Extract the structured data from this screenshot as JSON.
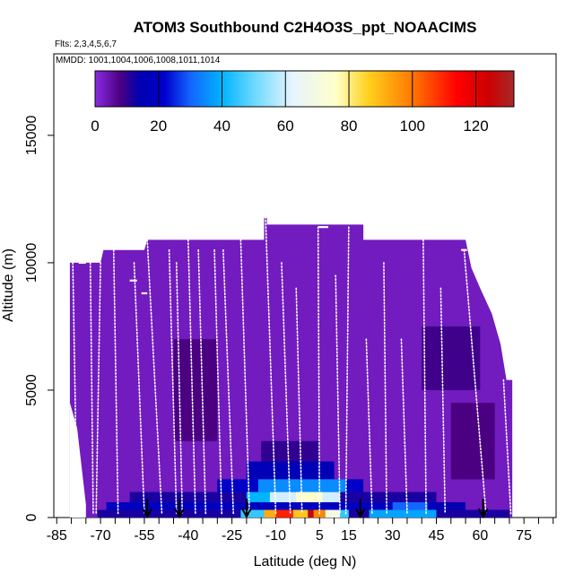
{
  "chart_data": {
    "type": "heatmap",
    "title": "ATOM3 Southbound C2H4O3S_ppt_NOAACIMS",
    "flights_label": "Flts: 2,3,4,5,6,7",
    "dates_label": "MMDD: 1001,1004,1006,1008,1011,1014",
    "xlabel": "Latitude (deg N)",
    "ylabel": "Altitude (m)",
    "xlim": [
      -86,
      86
    ],
    "ylim": [
      0,
      18200
    ],
    "x_tick_labels": [
      "-85",
      "-70",
      "-55",
      "-40",
      "-25",
      "-10",
      "5",
      "15",
      "30",
      "45",
      "60",
      "75"
    ],
    "x_ticks": [
      -85,
      -80,
      -75,
      -70,
      -65,
      -60,
      -55,
      -50,
      -45,
      -40,
      -35,
      -30,
      -25,
      -20,
      -15,
      -10,
      -5,
      0,
      5,
      10,
      15,
      20,
      25,
      30,
      35,
      40,
      45,
      50,
      55,
      60,
      65,
      70,
      75,
      80,
      85
    ],
    "y_tick_labels": [
      "0",
      "5000",
      "10000",
      "15000"
    ],
    "y_ticks": [
      0,
      5000,
      10000,
      15000
    ],
    "colorbar": {
      "min": 0,
      "max": 132,
      "tick_labels": [
        "0",
        "20",
        "40",
        "60",
        "80",
        "100",
        "120"
      ],
      "ticks": [
        0,
        20,
        40,
        60,
        80,
        100,
        120
      ],
      "stops": [
        {
          "v": 0,
          "c": "#8a2be2"
        },
        {
          "v": 8,
          "c": "#4b0082"
        },
        {
          "v": 14,
          "c": "#0000b0"
        },
        {
          "v": 22,
          "c": "#0000cd"
        },
        {
          "v": 30,
          "c": "#1464ff"
        },
        {
          "v": 40,
          "c": "#00b4ff"
        },
        {
          "v": 50,
          "c": "#6ad8ff"
        },
        {
          "v": 62,
          "c": "#e6f4ff"
        },
        {
          "v": 76,
          "c": "#ffffc8"
        },
        {
          "v": 86,
          "c": "#ffd21e"
        },
        {
          "v": 100,
          "c": "#ff7800"
        },
        {
          "v": 114,
          "c": "#ff0000"
        },
        {
          "v": 124,
          "c": "#cd0000"
        },
        {
          "v": 132,
          "c": "#a52a2a"
        }
      ]
    },
    "background_value": 3,
    "envelope": [
      {
        "lat": -80.5,
        "top": 10000
      },
      {
        "lat": -70,
        "top": 10000
      },
      {
        "lat": -69,
        "top": 10500
      },
      {
        "lat": -55,
        "top": 10500
      },
      {
        "lat": -54,
        "top": 10900
      },
      {
        "lat": -14,
        "top": 10900
      },
      {
        "lat": -14,
        "top": 11800
      },
      {
        "lat": -13,
        "top": 11800
      },
      {
        "lat": -13,
        "top": 11500
      },
      {
        "lat": 20,
        "top": 11500
      },
      {
        "lat": 20,
        "top": 10900
      },
      {
        "lat": 55,
        "top": 10900
      },
      {
        "lat": 57,
        "top": 9800
      },
      {
        "lat": 60,
        "top": 9000
      },
      {
        "lat": 64,
        "top": 8000
      },
      {
        "lat": 67,
        "top": 6800
      },
      {
        "lat": 69,
        "top": 5400
      },
      {
        "lat": 71,
        "top": 5400
      }
    ],
    "envelope_bottom_left": [
      {
        "lat": -80.5,
        "top": 4500
      },
      {
        "lat": -78,
        "top": 3500
      },
      {
        "lat": -75,
        "top": 500
      }
    ],
    "patches": [
      {
        "lat0": -71,
        "lat1": 70,
        "alt0": 0,
        "alt1": 300,
        "value": 12
      },
      {
        "lat0": -68,
        "lat1": 52,
        "alt0": 300,
        "alt1": 600,
        "value": 18
      },
      {
        "lat0": -60,
        "lat1": 45,
        "alt0": 600,
        "alt1": 1000,
        "value": 12
      },
      {
        "lat0": -30,
        "lat1": 20,
        "alt0": 1000,
        "alt1": 1500,
        "value": 20
      },
      {
        "lat0": -20,
        "lat1": 10,
        "alt0": 1500,
        "alt1": 2200,
        "value": 16
      },
      {
        "lat0": -15,
        "lat1": 5,
        "alt0": 2200,
        "alt1": 3000,
        "value": 10
      },
      {
        "lat0": -22,
        "lat1": 15,
        "alt0": 0,
        "alt1": 300,
        "value": 45
      },
      {
        "lat0": -20,
        "lat1": -5,
        "alt0": 600,
        "alt1": 1000,
        "value": 40
      },
      {
        "lat0": -12,
        "lat1": 12,
        "alt0": 600,
        "alt1": 1000,
        "value": 60
      },
      {
        "lat0": -16,
        "lat1": 14,
        "alt0": 1000,
        "alt1": 1500,
        "value": 35
      },
      {
        "lat0": 22,
        "lat1": 45,
        "alt0": 0,
        "alt1": 300,
        "value": 38
      },
      {
        "lat0": 30,
        "lat1": 42,
        "alt0": 300,
        "alt1": 600,
        "value": 30
      },
      {
        "lat0": -14,
        "lat1": -10,
        "alt0": 0,
        "alt1": 300,
        "value": 92
      },
      {
        "lat0": -10,
        "lat1": -4,
        "alt0": 0,
        "alt1": 300,
        "value": 110
      },
      {
        "lat0": -4,
        "lat1": 1,
        "alt0": 0,
        "alt1": 300,
        "value": 88
      },
      {
        "lat0": 1,
        "lat1": 3,
        "alt0": 0,
        "alt1": 300,
        "value": 125
      },
      {
        "lat0": 3,
        "lat1": 7,
        "alt0": 0,
        "alt1": 300,
        "value": 98
      },
      {
        "lat0": 7,
        "lat1": 12,
        "alt0": 0,
        "alt1": 300,
        "value": 70
      },
      {
        "lat0": -3,
        "lat1": 6,
        "alt0": 600,
        "alt1": 1000,
        "value": 75
      },
      {
        "lat0": 45,
        "lat1": 55,
        "alt0": 300,
        "alt1": 600,
        "value": 14
      },
      {
        "lat0": 50,
        "lat1": 65,
        "alt0": 1500,
        "alt1": 4500,
        "value": 8
      },
      {
        "lat0": -45,
        "lat1": -30,
        "alt0": 3000,
        "alt1": 7000,
        "value": 8
      },
      {
        "lat0": 40,
        "lat1": 60,
        "alt0": 5000,
        "alt1": 7500,
        "value": 9
      }
    ],
    "profiles": [
      {
        "lat_top": -79.5,
        "lat_bottom": -78,
        "alt_top": 10000
      },
      {
        "lat_top": -73.5,
        "lat_bottom": -72.5,
        "alt_top": 10000
      },
      {
        "lat_top": -70,
        "lat_bottom": -71.5,
        "alt_top": 10000
      },
      {
        "lat_top": -65.5,
        "lat_bottom": -64,
        "alt_top": 10500
      },
      {
        "lat_top": -58.5,
        "lat_bottom": -55,
        "alt_top": 10000
      },
      {
        "lat_top": -54,
        "lat_bottom": -49,
        "alt_top": 10900
      },
      {
        "lat_top": -46.5,
        "lat_bottom": -44,
        "alt_top": 10500
      },
      {
        "lat_top": -44,
        "lat_bottom": -42,
        "alt_top": 10000
      },
      {
        "lat_top": -40,
        "lat_bottom": -37.5,
        "alt_top": 10900
      },
      {
        "lat_top": -36.5,
        "lat_bottom": -34,
        "alt_top": 10500
      },
      {
        "lat_top": -31,
        "lat_bottom": -28.5,
        "alt_top": 10500
      },
      {
        "lat_top": -28,
        "lat_bottom": -24.5,
        "alt_top": 10500
      },
      {
        "lat_top": -22,
        "lat_bottom": -19,
        "alt_top": 10900
      },
      {
        "lat_top": -13.5,
        "lat_bottom": -10,
        "alt_top": 11800
      },
      {
        "lat_top": -8,
        "lat_bottom": -5,
        "alt_top": 10000
      },
      {
        "lat_top": -3,
        "lat_bottom": -1,
        "alt_top": 9000
      },
      {
        "lat_top": 4.5,
        "lat_bottom": 5,
        "alt_top": 11400
      },
      {
        "lat_top": 10.5,
        "lat_bottom": 12,
        "alt_top": 9500
      },
      {
        "lat_top": 15,
        "lat_bottom": 14,
        "alt_top": 11400
      },
      {
        "lat_top": 21,
        "lat_bottom": 23,
        "alt_top": 7000
      },
      {
        "lat_top": 27,
        "lat_bottom": 28,
        "alt_top": 10000
      },
      {
        "lat_top": 33,
        "lat_bottom": 35,
        "alt_top": 7000
      },
      {
        "lat_top": 40.5,
        "lat_bottom": 41.5,
        "alt_top": 10900
      },
      {
        "lat_top": 46.5,
        "lat_bottom": 48,
        "alt_top": 9000
      },
      {
        "lat_top": 54.5,
        "lat_bottom": 62,
        "alt_top": 10500
      },
      {
        "lat_top": 68,
        "lat_bottom": 70.5,
        "alt_top": 5400
      }
    ],
    "plateaus": [
      {
        "lat0": -77.5,
        "lat1": -75,
        "alt": 10000
      },
      {
        "lat0": -60,
        "lat1": -57.5,
        "alt": 9300
      },
      {
        "lat0": -56,
        "lat1": -54,
        "alt": 8800
      },
      {
        "lat0": -14,
        "lat1": -13,
        "alt": 11800
      },
      {
        "lat0": 4.5,
        "lat1": 8,
        "alt": 11400
      },
      {
        "lat0": 53.5,
        "lat1": 55.5,
        "alt": 10500
      }
    ],
    "arrows": [
      -54,
      -43,
      -20,
      19,
      61
    ]
  }
}
